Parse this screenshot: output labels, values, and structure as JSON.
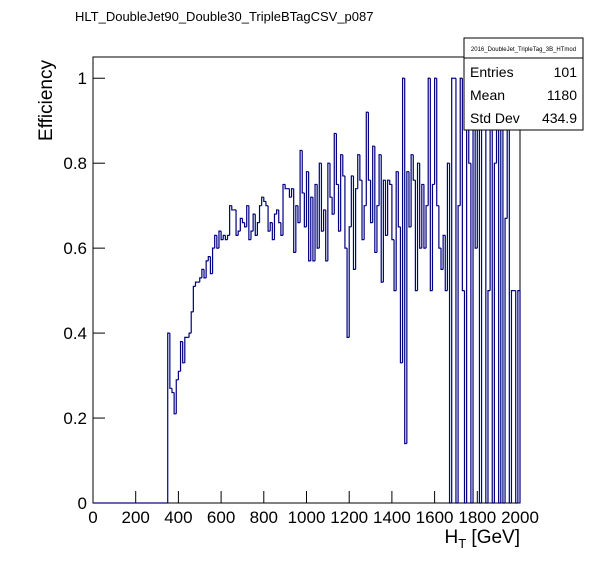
{
  "chart_data": {
    "type": "histogram",
    "title": "HLT_DoubleJet90_Double30_TripleBTagCSV_p087",
    "xlabel": {
      "base": "H",
      "sub": "T",
      "rest": " [GeV]"
    },
    "ylabel": "Efficiency",
    "color": "#000080",
    "xlim": [
      0,
      2000
    ],
    "ylim": [
      0,
      1.05
    ],
    "xticks": [
      0,
      200,
      400,
      600,
      800,
      1000,
      1200,
      1400,
      1600,
      1800,
      2000
    ],
    "yticks": [
      0,
      0.2,
      0.4,
      0.6,
      0.8,
      1
    ],
    "bins": [
      0,
      10,
      20,
      30,
      40,
      50,
      60,
      70,
      80,
      90,
      100,
      110,
      120,
      130,
      140,
      150,
      160,
      170,
      180,
      190,
      200,
      210,
      220,
      230,
      240,
      250,
      260,
      270,
      280,
      290,
      300,
      310,
      320,
      330,
      340,
      350,
      360,
      370,
      380,
      390,
      400,
      410,
      420,
      430,
      440,
      450,
      460,
      470,
      480,
      490,
      500,
      510,
      520,
      530,
      540,
      550,
      560,
      570,
      580,
      590,
      600,
      610,
      620,
      630,
      640,
      650,
      660,
      670,
      680,
      690,
      700,
      710,
      720,
      730,
      740,
      750,
      760,
      770,
      780,
      790,
      800,
      810,
      820,
      830,
      840,
      850,
      860,
      870,
      880,
      890,
      900,
      910,
      920,
      930,
      940,
      950,
      960,
      970,
      980,
      990,
      1000,
      1010,
      1020,
      1030,
      1040,
      1050,
      1060,
      1070,
      1080,
      1090,
      1100,
      1110,
      1120,
      1130,
      1140,
      1150,
      1160,
      1170,
      1180,
      1190,
      1200,
      1210,
      1220,
      1230,
      1240,
      1250,
      1260,
      1270,
      1280,
      1290,
      1300,
      1310,
      1320,
      1330,
      1340,
      1350,
      1360,
      1370,
      1380,
      1390,
      1400,
      1410,
      1420,
      1430,
      1440,
      1450,
      1460,
      1470,
      1480,
      1490,
      1500,
      1510,
      1520,
      1530,
      1540,
      1550,
      1560,
      1570,
      1580,
      1590,
      1600,
      1610,
      1620,
      1630,
      1640,
      1650,
      1660,
      1670,
      1680,
      1690,
      1700,
      1710,
      1720,
      1730,
      1740,
      1750,
      1760,
      1770,
      1780,
      1790,
      1800,
      1810,
      1820,
      1830,
      1840,
      1850,
      1860,
      1870,
      1880,
      1890,
      1900,
      1910,
      1920,
      1930,
      1940,
      1950,
      1960,
      1970,
      1980,
      1990,
      2000
    ],
    "values": [
      0,
      0,
      0,
      0,
      0,
      0,
      0,
      0,
      0,
      0,
      0,
      0,
      0,
      0,
      0,
      0,
      0,
      0,
      0,
      0,
      0,
      0,
      0,
      0,
      0,
      0,
      0,
      0,
      0,
      0,
      0,
      0,
      0,
      0,
      0,
      0.4,
      0.27,
      0.26,
      0.21,
      0.29,
      0.31,
      0.38,
      0.33,
      0.39,
      0.39,
      0.4,
      0.45,
      0.51,
      0.52,
      0.52,
      0.53,
      0.55,
      0.53,
      0.57,
      0.58,
      0.54,
      0.6,
      0.63,
      0.6,
      0.64,
      0.62,
      0.63,
      0.62,
      0.63,
      0.7,
      0.69,
      0.69,
      0.63,
      0.64,
      0.67,
      0.66,
      0.65,
      0.7,
      0.62,
      0.64,
      0.68,
      0.63,
      0.66,
      0.7,
      0.72,
      0.71,
      0.7,
      0.64,
      0.66,
      0.62,
      0.68,
      0.69,
      0.66,
      0.63,
      0.75,
      0.74,
      0.74,
      0.72,
      0.74,
      0.59,
      0.7,
      0.66,
      0.83,
      0.73,
      0.65,
      0.78,
      0.57,
      0.72,
      0.57,
      0.75,
      0.6,
      0.8,
      0.64,
      0.69,
      0.57,
      0.8,
      0.72,
      0.68,
      0.87,
      0.75,
      0.64,
      0.82,
      0.77,
      0.6,
      0.39,
      0.65,
      0.77,
      0.55,
      0.74,
      0.82,
      0.76,
      0.62,
      0.7,
      0.92,
      0.76,
      0.66,
      0.84,
      0.59,
      0.7,
      0.82,
      0.52,
      0.76,
      0.63,
      0.76,
      0.75,
      0.62,
      0.5,
      0.78,
      0.65,
      0.33,
      1,
      0.14,
      0.78,
      0.65,
      0.82,
      0.76,
      0.5,
      0.8,
      0.6,
      0.75,
      0.6,
      0.7,
      1,
      0.5,
      0.75,
      1,
      0.7,
      0.6,
      0.55,
      0.63,
      0.5,
      0.8,
      0,
      1,
      1,
      0,
      0.7,
      1,
      0.5,
      0,
      1,
      0.8,
      0,
      1,
      0.6,
      1,
      0,
      0.9,
      1,
      0,
      0.5,
      1,
      0,
      0.8,
      1,
      0,
      1,
      0,
      0.67,
      1,
      0,
      0.5,
      0.5,
      0,
      0.5
    ],
    "stats": {
      "name": "2016_DoubleJet_TripleTag_3B_HTmod",
      "rows": [
        [
          "Entries",
          "101"
        ],
        [
          "Mean",
          "1180"
        ],
        [
          "Std Dev",
          "434.9"
        ]
      ]
    }
  }
}
